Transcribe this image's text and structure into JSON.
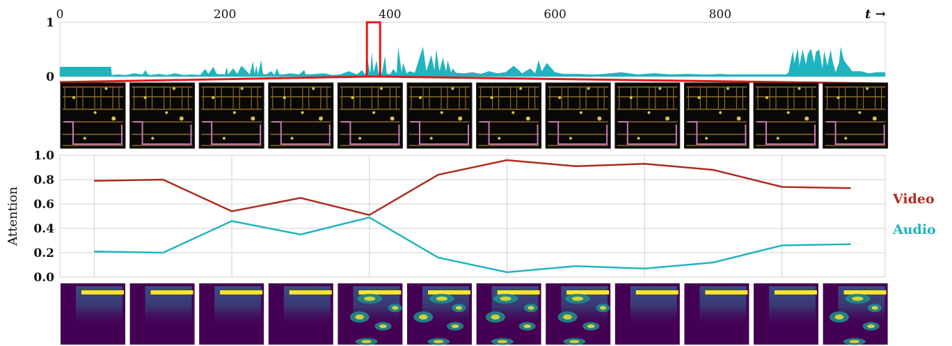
{
  "chart_data": [
    {
      "type": "area",
      "title": "",
      "x_tick_labels": [
        "0",
        "200",
        "400",
        "600",
        "800"
      ],
      "x_ticks": [
        0,
        200,
        400,
        600,
        800
      ],
      "x_axis_label": "t →",
      "xlim": [
        0,
        1000
      ],
      "y_tick_labels": [
        "0",
        "1"
      ],
      "y_ticks": [
        0,
        1
      ],
      "ylim": [
        0,
        1
      ],
      "color": "#1fb4bf",
      "highlight_window": [
        372,
        388
      ],
      "highlight_color": "#e0191b",
      "series": [
        {
          "x": [
            0,
            10,
            20,
            30,
            40,
            50,
            62,
            63,
            70,
            80,
            90,
            100,
            104,
            106,
            110,
            120,
            130,
            140,
            150,
            160,
            170,
            176,
            180,
            186,
            190,
            200,
            202,
            204,
            210,
            215,
            220,
            230,
            234,
            236,
            238,
            240,
            244,
            246,
            250,
            256,
            260,
            263,
            266,
            270,
            280,
            290,
            296,
            298,
            300,
            310,
            320,
            330,
            340,
            350,
            360,
            366,
            370,
            373,
            376,
            378,
            380,
            384,
            386,
            388,
            390,
            394,
            396,
            400,
            404,
            408,
            410,
            414,
            416,
            420,
            424,
            430,
            440,
            444,
            450,
            454,
            456,
            460,
            464,
            468,
            470,
            474,
            476,
            480,
            490,
            500,
            510,
            520,
            530,
            540,
            550,
            560,
            570,
            576,
            580,
            584,
            590,
            600,
            610,
            620,
            630,
            640,
            650,
            660,
            680,
            700,
            720,
            740,
            760,
            780,
            790,
            800,
            810,
            820,
            830,
            840,
            850,
            860,
            870,
            880,
            883,
            888,
            890,
            894,
            896,
            900,
            904,
            906,
            910,
            914,
            916,
            920,
            924,
            926,
            930,
            934,
            936,
            940,
            944,
            946,
            950,
            960,
            970,
            980,
            990,
            1000
          ],
          "values": [
            0.18,
            0.18,
            0.18,
            0.18,
            0.18,
            0.18,
            0.18,
            0.03,
            0.04,
            0.03,
            0.06,
            0.04,
            0.12,
            0.05,
            0.03,
            0.05,
            0.03,
            0.06,
            0.03,
            0.04,
            0.03,
            0.14,
            0.05,
            0.18,
            0.05,
            0.04,
            0.18,
            0.04,
            0.15,
            0.05,
            0.2,
            0.04,
            0.28,
            0.05,
            0.2,
            0.04,
            0.3,
            0.05,
            0.04,
            0.1,
            0.03,
            0.15,
            0.04,
            0.04,
            0.06,
            0.04,
            0.12,
            0.04,
            0.04,
            0.05,
            0.06,
            0.03,
            0.04,
            0.1,
            0.04,
            0.12,
            0.04,
            0.3,
            0.05,
            0.45,
            0.08,
            0.3,
            0.05,
            0.2,
            0.04,
            0.38,
            0.06,
            0.04,
            0.14,
            0.06,
            0.55,
            0.08,
            0.25,
            0.06,
            0.1,
            0.07,
            0.55,
            0.1,
            0.4,
            0.12,
            0.5,
            0.1,
            0.35,
            0.1,
            0.3,
            0.08,
            0.15,
            0.07,
            0.06,
            0.08,
            0.05,
            0.1,
            0.06,
            0.08,
            0.2,
            0.06,
            0.15,
            0.06,
            0.3,
            0.1,
            0.25,
            0.08,
            0.05,
            0.05,
            0.05,
            0.04,
            0.04,
            0.05,
            0.08,
            0.04,
            0.06,
            0.04,
            0.05,
            0.04,
            0.04,
            0.05,
            0.04,
            0.04,
            0.04,
            0.04,
            0.04,
            0.04,
            0.04,
            0.04,
            0.08,
            0.48,
            0.25,
            0.52,
            0.2,
            0.5,
            0.22,
            0.4,
            0.52,
            0.25,
            0.45,
            0.5,
            0.15,
            0.48,
            0.2,
            0.5,
            0.3,
            0.08,
            0.25,
            0.55,
            0.3,
            0.1,
            0.1,
            0.06,
            0.08,
            0.08
          ]
        }
      ]
    },
    {
      "type": "line",
      "title": "",
      "ylabel": "Attention",
      "xlabel": "",
      "ylim": [
        0,
        1
      ],
      "y_ticks": [
        0.0,
        0.2,
        0.4,
        0.6,
        0.8,
        1.0
      ],
      "y_tick_labels": [
        "0.0",
        "0.2",
        "0.4",
        "0.6",
        "0.8",
        "1.0"
      ],
      "x": [
        1,
        2,
        3,
        4,
        5,
        6,
        7,
        8,
        9,
        10,
        11,
        12
      ],
      "xlim": [
        0.5,
        12.5
      ],
      "x_gridlines": [
        1,
        3,
        5,
        7,
        9,
        11
      ],
      "grid": true,
      "legend_placement": "right",
      "series": [
        {
          "name": "Video",
          "color": "#b02a1f",
          "values": [
            0.79,
            0.8,
            0.54,
            0.65,
            0.51,
            0.84,
            0.96,
            0.91,
            0.93,
            0.88,
            0.74,
            0.73
          ]
        },
        {
          "name": "Audio",
          "color": "#1fb4bf",
          "values": [
            0.21,
            0.2,
            0.46,
            0.35,
            0.49,
            0.16,
            0.04,
            0.09,
            0.07,
            0.12,
            0.26,
            0.27
          ]
        }
      ]
    }
  ],
  "frame_thumbnails": {
    "count": 12,
    "glow_color": "#f2e85a",
    "outline_color": "#c87ab8",
    "wall_color": "#8a6a2c"
  },
  "spectrograms": {
    "count": 12,
    "background_color": "#440154",
    "highlight_color": "#fde725",
    "mid_color": "#21918c"
  }
}
